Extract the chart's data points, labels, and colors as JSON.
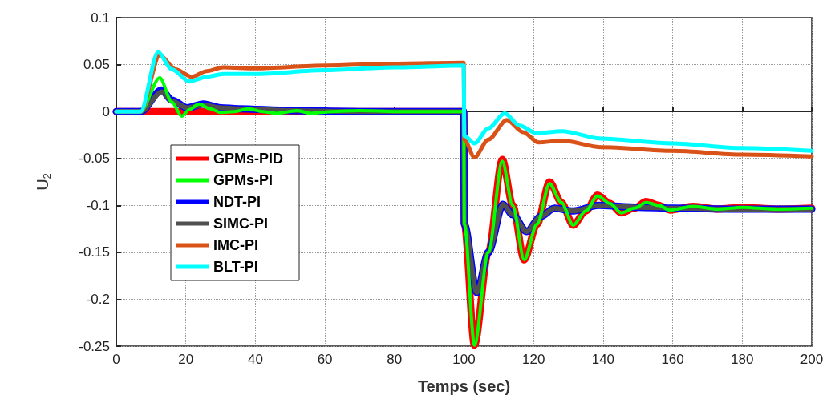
{
  "chart_data": {
    "type": "line",
    "xlabel": "Temps (sec)",
    "ylabel": "U$_{2}$",
    "xlim": [
      0,
      200
    ],
    "xticks": [
      0,
      20,
      40,
      60,
      80,
      100,
      120,
      140,
      160,
      180,
      200
    ],
    "ylim": [
      -0.25,
      0.1
    ],
    "yticks": [
      -0.25,
      -0.2,
      -0.15,
      -0.1,
      -0.05,
      0,
      0.05,
      0.1
    ],
    "grid": true,
    "legend": "left",
    "line_style": "solid",
    "marker": "none",
    "series": [
      {
        "name": "GPMs-PID",
        "color": "#ff0000",
        "x": [
          0,
          7,
          99.9,
          100.1,
          103,
          107,
          111,
          114,
          117.3,
          121,
          124.6,
          128,
          131.4,
          135,
          138.4,
          142,
          145.2,
          149,
          152.4,
          156,
          159.2,
          166,
          173,
          180,
          190,
          200
        ],
        "values": [
          0,
          0,
          0,
          -0.12,
          -0.249,
          -0.15,
          -0.051,
          -0.1,
          -0.158,
          -0.12,
          -0.075,
          -0.097,
          -0.121,
          -0.106,
          -0.089,
          -0.098,
          -0.108,
          -0.103,
          -0.096,
          -0.1,
          -0.105,
          -0.101,
          -0.104,
          -0.102,
          -0.104,
          -0.103
        ]
      },
      {
        "name": "GPMs-PI",
        "color": "#00ff00",
        "x": [
          0,
          7,
          12.5,
          16,
          18.8,
          21,
          23.8,
          27,
          30,
          34,
          38,
          42,
          46,
          52,
          56,
          62,
          70,
          80,
          99.9,
          100.1,
          103,
          107,
          111,
          114,
          117.3,
          121,
          124.6,
          128,
          131.4,
          135,
          138.4,
          142,
          145.2,
          149,
          152.4,
          156,
          159.2,
          166,
          173,
          180,
          190,
          200
        ],
        "values": [
          0,
          0,
          0.036,
          0.01,
          -0.005,
          0.002,
          0.008,
          0.003,
          -0.001,
          0,
          0.003,
          0,
          -0.002,
          0.001,
          -0.002,
          0,
          0.001,
          0,
          0,
          -0.12,
          -0.249,
          -0.15,
          -0.053,
          -0.1,
          -0.158,
          -0.12,
          -0.077,
          -0.097,
          -0.121,
          -0.106,
          -0.09,
          -0.098,
          -0.108,
          -0.103,
          -0.097,
          -0.1,
          -0.105,
          -0.101,
          -0.104,
          -0.102,
          -0.104,
          -0.103
        ]
      },
      {
        "name": "NDT-PI",
        "color": "#0000ff",
        "x": [
          0,
          7,
          13,
          16,
          20.4,
          25,
          30,
          35,
          50,
          70,
          99.9,
          100.1,
          103.7,
          107,
          111.2,
          114,
          118,
          122,
          126,
          131.4,
          138.7,
          150,
          160,
          180,
          200
        ],
        "values": [
          0,
          0,
          0.023,
          0.012,
          0.004,
          0.008,
          0.004,
          0.003,
          0.001,
          0,
          0,
          -0.12,
          -0.193,
          -0.15,
          -0.099,
          -0.11,
          -0.128,
          -0.112,
          -0.103,
          -0.106,
          -0.1,
          -0.102,
          -0.103,
          -0.104,
          -0.104
        ]
      },
      {
        "name": "SIMC-PI",
        "color": "#505050",
        "x": [
          0,
          7,
          13.1,
          16,
          20.4,
          25,
          30,
          35,
          50,
          70,
          99.9,
          100.1,
          103.7,
          107,
          111.2,
          114,
          118,
          122,
          126,
          131.4,
          138.7,
          150,
          160,
          180,
          200
        ],
        "values": [
          0,
          0,
          0.021,
          0.011,
          0.004,
          0.007,
          0.004,
          0.003,
          0.001,
          0,
          0,
          -0.12,
          -0.193,
          -0.15,
          -0.099,
          -0.11,
          -0.128,
          -0.112,
          -0.103,
          -0.106,
          -0.1,
          -0.102,
          -0.103,
          -0.104,
          -0.104
        ]
      },
      {
        "name": "IMC-PI",
        "color": "#d95319",
        "x": [
          0,
          7,
          12.5,
          17,
          21.7,
          26,
          30.8,
          40,
          60,
          80,
          99.9,
          100.1,
          103,
          107,
          112.3,
          117,
          121.4,
          128.2,
          139.5,
          160,
          180,
          200
        ],
        "values": [
          0,
          0,
          0.06,
          0.045,
          0.037,
          0.043,
          0.047,
          0.046,
          0.049,
          0.051,
          0.052,
          -0.03,
          -0.049,
          -0.03,
          -0.009,
          -0.022,
          -0.033,
          -0.031,
          -0.038,
          -0.042,
          -0.046,
          -0.048
        ]
      },
      {
        "name": "BLT-PI",
        "color": "#00ffff",
        "x": [
          0,
          7,
          12,
          16,
          21,
          26,
          30.8,
          40,
          60,
          80,
          99.9,
          100.1,
          103,
          107,
          111.7,
          116,
          120.7,
          128.2,
          139.5,
          160,
          180,
          200
        ],
        "values": [
          0,
          0,
          0.063,
          0.045,
          0.032,
          0.037,
          0.04,
          0.04,
          0.044,
          0.047,
          0.049,
          -0.026,
          -0.034,
          -0.018,
          -0.002,
          -0.015,
          -0.023,
          -0.021,
          -0.029,
          -0.034,
          -0.039,
          -0.042
        ]
      }
    ]
  }
}
